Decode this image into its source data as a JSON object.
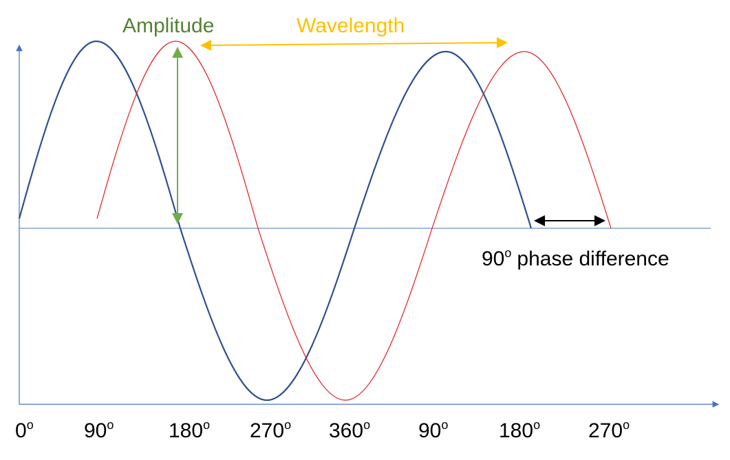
{
  "annotations": {
    "amplitude": "Amplitude",
    "wavelength": "Wavelength",
    "phase_difference": {
      "number": "90",
      "sup": "o",
      "text": "phase difference"
    }
  },
  "x_axis_labels": [
    {
      "number": "0",
      "sup": "o"
    },
    {
      "number": "90",
      "sup": "o"
    },
    {
      "number": "180",
      "sup": "o"
    },
    {
      "number": "270",
      "sup": "o"
    },
    {
      "number": "360",
      "sup": "o"
    },
    {
      "number": "90",
      "sup": "o"
    },
    {
      "number": "180",
      "sup": "o"
    },
    {
      "number": "270",
      "sup": "o"
    }
  ]
}
